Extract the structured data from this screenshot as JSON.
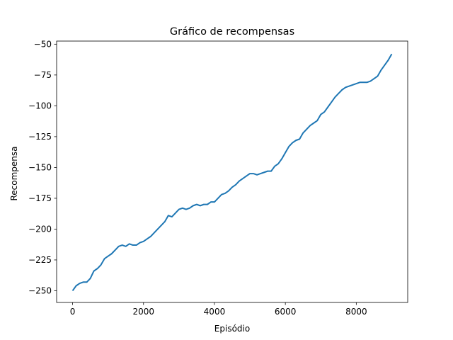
{
  "chart_data": {
    "type": "line",
    "title": "Gráfico de recompensas",
    "xlabel": "Episódio",
    "ylabel": "Recompensa",
    "xlim": [
      -450,
      9450
    ],
    "ylim": [
      -259.5,
      -47.5
    ],
    "xticks": [
      0,
      2000,
      4000,
      6000,
      8000
    ],
    "yticks": [
      -250,
      -225,
      -200,
      -175,
      -150,
      -125,
      -100,
      -75,
      -50
    ],
    "xtick_labels": [
      "0",
      "2000",
      "4000",
      "6000",
      "8000"
    ],
    "ytick_labels": [
      "−250",
      "−225",
      "−200",
      "−175",
      "−150",
      "−125",
      "−100",
      "−75",
      "−50"
    ],
    "grid": false,
    "legend": false,
    "line_color": "#1f77b4",
    "series": [
      {
        "x": [
          0,
          100,
          200,
          300,
          400,
          500,
          600,
          700,
          800,
          900,
          1000,
          1100,
          1200,
          1300,
          1400,
          1500,
          1600,
          1700,
          1800,
          1900,
          2000,
          2100,
          2200,
          2300,
          2400,
          2500,
          2600,
          2700,
          2800,
          2900,
          3000,
          3100,
          3200,
          3300,
          3400,
          3500,
          3600,
          3700,
          3800,
          3900,
          4000,
          4100,
          4200,
          4300,
          4400,
          4500,
          4600,
          4700,
          4800,
          4900,
          5000,
          5100,
          5200,
          5300,
          5400,
          5500,
          5600,
          5700,
          5800,
          5900,
          6000,
          6100,
          6200,
          6300,
          6400,
          6500,
          6600,
          6700,
          6800,
          6900,
          7000,
          7100,
          7200,
          7300,
          7400,
          7500,
          7600,
          7700,
          7800,
          7900,
          8000,
          8100,
          8200,
          8300,
          8400,
          8500,
          8600,
          8700,
          8800,
          8900,
          9000
        ],
        "y": [
          -250,
          -246,
          -244,
          -243,
          -243,
          -240,
          -234,
          -232,
          -229,
          -224,
          -222,
          -220,
          -217,
          -214,
          -213,
          -214,
          -212,
          -213,
          -213,
          -211,
          -210,
          -208,
          -206,
          -203,
          -200,
          -197,
          -194,
          -189,
          -190,
          -187,
          -184,
          -183,
          -184,
          -183,
          -181,
          -180,
          -181,
          -180,
          -180,
          -178,
          -178,
          -175,
          -172,
          -171,
          -169,
          -166,
          -164,
          -161,
          -159,
          -157,
          -155,
          -155,
          -156,
          -155,
          -154,
          -153,
          -153,
          -149,
          -147,
          -143,
          -138,
          -133,
          -130,
          -128,
          -127,
          -122,
          -119,
          -116,
          -114,
          -112,
          -107,
          -105,
          -101,
          -97,
          -93,
          -90,
          -87,
          -85,
          -84,
          -83,
          -82,
          -81,
          -81,
          -81,
          -80,
          -78,
          -76,
          -71,
          -67,
          -63,
          -58
        ]
      }
    ]
  }
}
